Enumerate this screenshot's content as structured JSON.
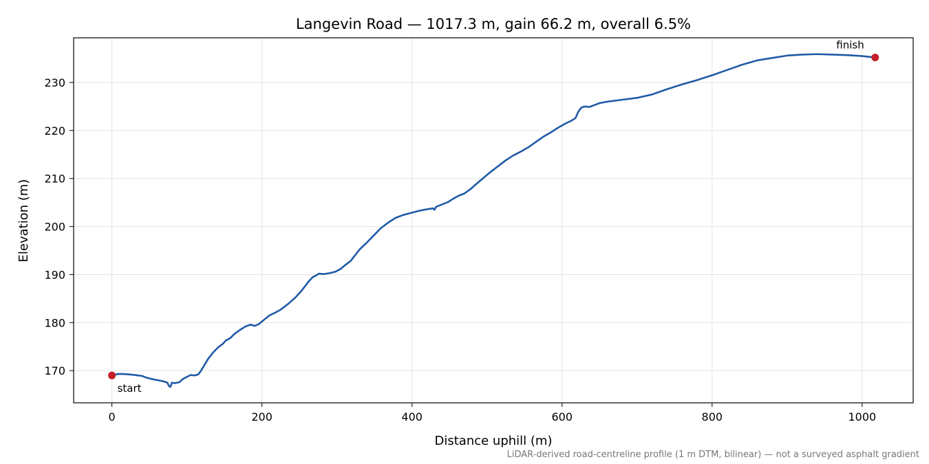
{
  "chart_data": {
    "type": "line",
    "title": "Langevin Road — 1017.3 m, gain 66.2 m, overall 6.5%",
    "xlabel": "Distance uphill (m)",
    "ylabel": "Elevation (m)",
    "xlim": [
      -51,
      1068
    ],
    "ylim": [
      163.3,
      239.3
    ],
    "x_ticks": [
      0,
      200,
      400,
      600,
      800,
      1000
    ],
    "y_ticks": [
      170,
      180,
      190,
      200,
      210,
      220,
      230
    ],
    "grid": true,
    "line_color": "#1f5aa6",
    "marker_color": "#c41e2a",
    "series": [
      {
        "x": [
          0,
          8,
          15,
          25,
          35,
          40,
          45,
          52,
          58,
          65,
          70,
          74,
          76,
          78,
          80,
          84,
          90,
          95,
          100,
          105,
          110,
          115,
          118,
          122,
          128,
          135,
          142,
          148,
          152,
          158,
          163,
          170,
          178,
          185,
          190,
          196,
          202,
          210,
          218,
          225,
          235,
          245,
          252,
          258,
          263,
          268,
          272,
          276,
          282,
          290,
          298,
          305,
          312,
          318,
          322,
          330,
          340,
          350,
          358,
          368,
          378,
          388,
          400,
          410,
          420,
          428,
          430,
          432,
          440,
          448,
          455,
          462,
          470,
          478,
          486,
          495,
          505,
          515,
          525,
          535,
          545,
          555,
          565,
          575,
          585,
          595,
          605,
          612,
          618,
          622,
          626,
          630,
          636,
          640,
          650,
          660,
          680,
          700,
          720,
          740,
          760,
          780,
          800,
          820,
          840,
          860,
          880,
          900,
          920,
          940,
          960,
          980,
          1000,
          1017.3
        ],
        "y": [
          169.0,
          169.3,
          169.3,
          169.2,
          169.0,
          168.9,
          168.6,
          168.3,
          168.1,
          167.9,
          167.7,
          167.5,
          166.8,
          166.6,
          167.5,
          167.4,
          167.6,
          168.3,
          168.7,
          169.1,
          169.0,
          169.2,
          169.8,
          170.8,
          172.4,
          173.8,
          174.9,
          175.6,
          176.3,
          176.8,
          177.6,
          178.4,
          179.2,
          179.6,
          179.3,
          179.7,
          180.5,
          181.5,
          182.1,
          182.7,
          183.9,
          185.3,
          186.5,
          187.7,
          188.7,
          189.5,
          189.8,
          190.2,
          190.1,
          190.3,
          190.6,
          191.2,
          192.1,
          192.8,
          193.6,
          195.2,
          196.7,
          198.3,
          199.6,
          200.8,
          201.8,
          202.4,
          202.9,
          203.3,
          203.6,
          203.8,
          203.5,
          204.1,
          204.6,
          205.1,
          205.8,
          206.4,
          206.9,
          207.8,
          208.9,
          210.1,
          211.4,
          212.6,
          213.8,
          214.8,
          215.6,
          216.5,
          217.6,
          218.7,
          219.6,
          220.6,
          221.5,
          222.0,
          222.6,
          224.0,
          224.8,
          225.0,
          224.9,
          225.1,
          225.7,
          226.0,
          226.4,
          226.8,
          227.5,
          228.6,
          229.6,
          230.5,
          231.5,
          232.6,
          233.7,
          234.6,
          235.1,
          235.6,
          235.8,
          235.9,
          235.8,
          235.7,
          235.5,
          235.2
        ]
      }
    ],
    "annotations": {
      "start_label": "start",
      "finish_label": "finish",
      "start_point": [
        0,
        169.0
      ],
      "finish_point": [
        1017.3,
        235.2
      ]
    },
    "footnote": "LiDAR-derived road-centreline profile (1 m DTM, bilinear) — not a surveyed asphalt gradient"
  }
}
